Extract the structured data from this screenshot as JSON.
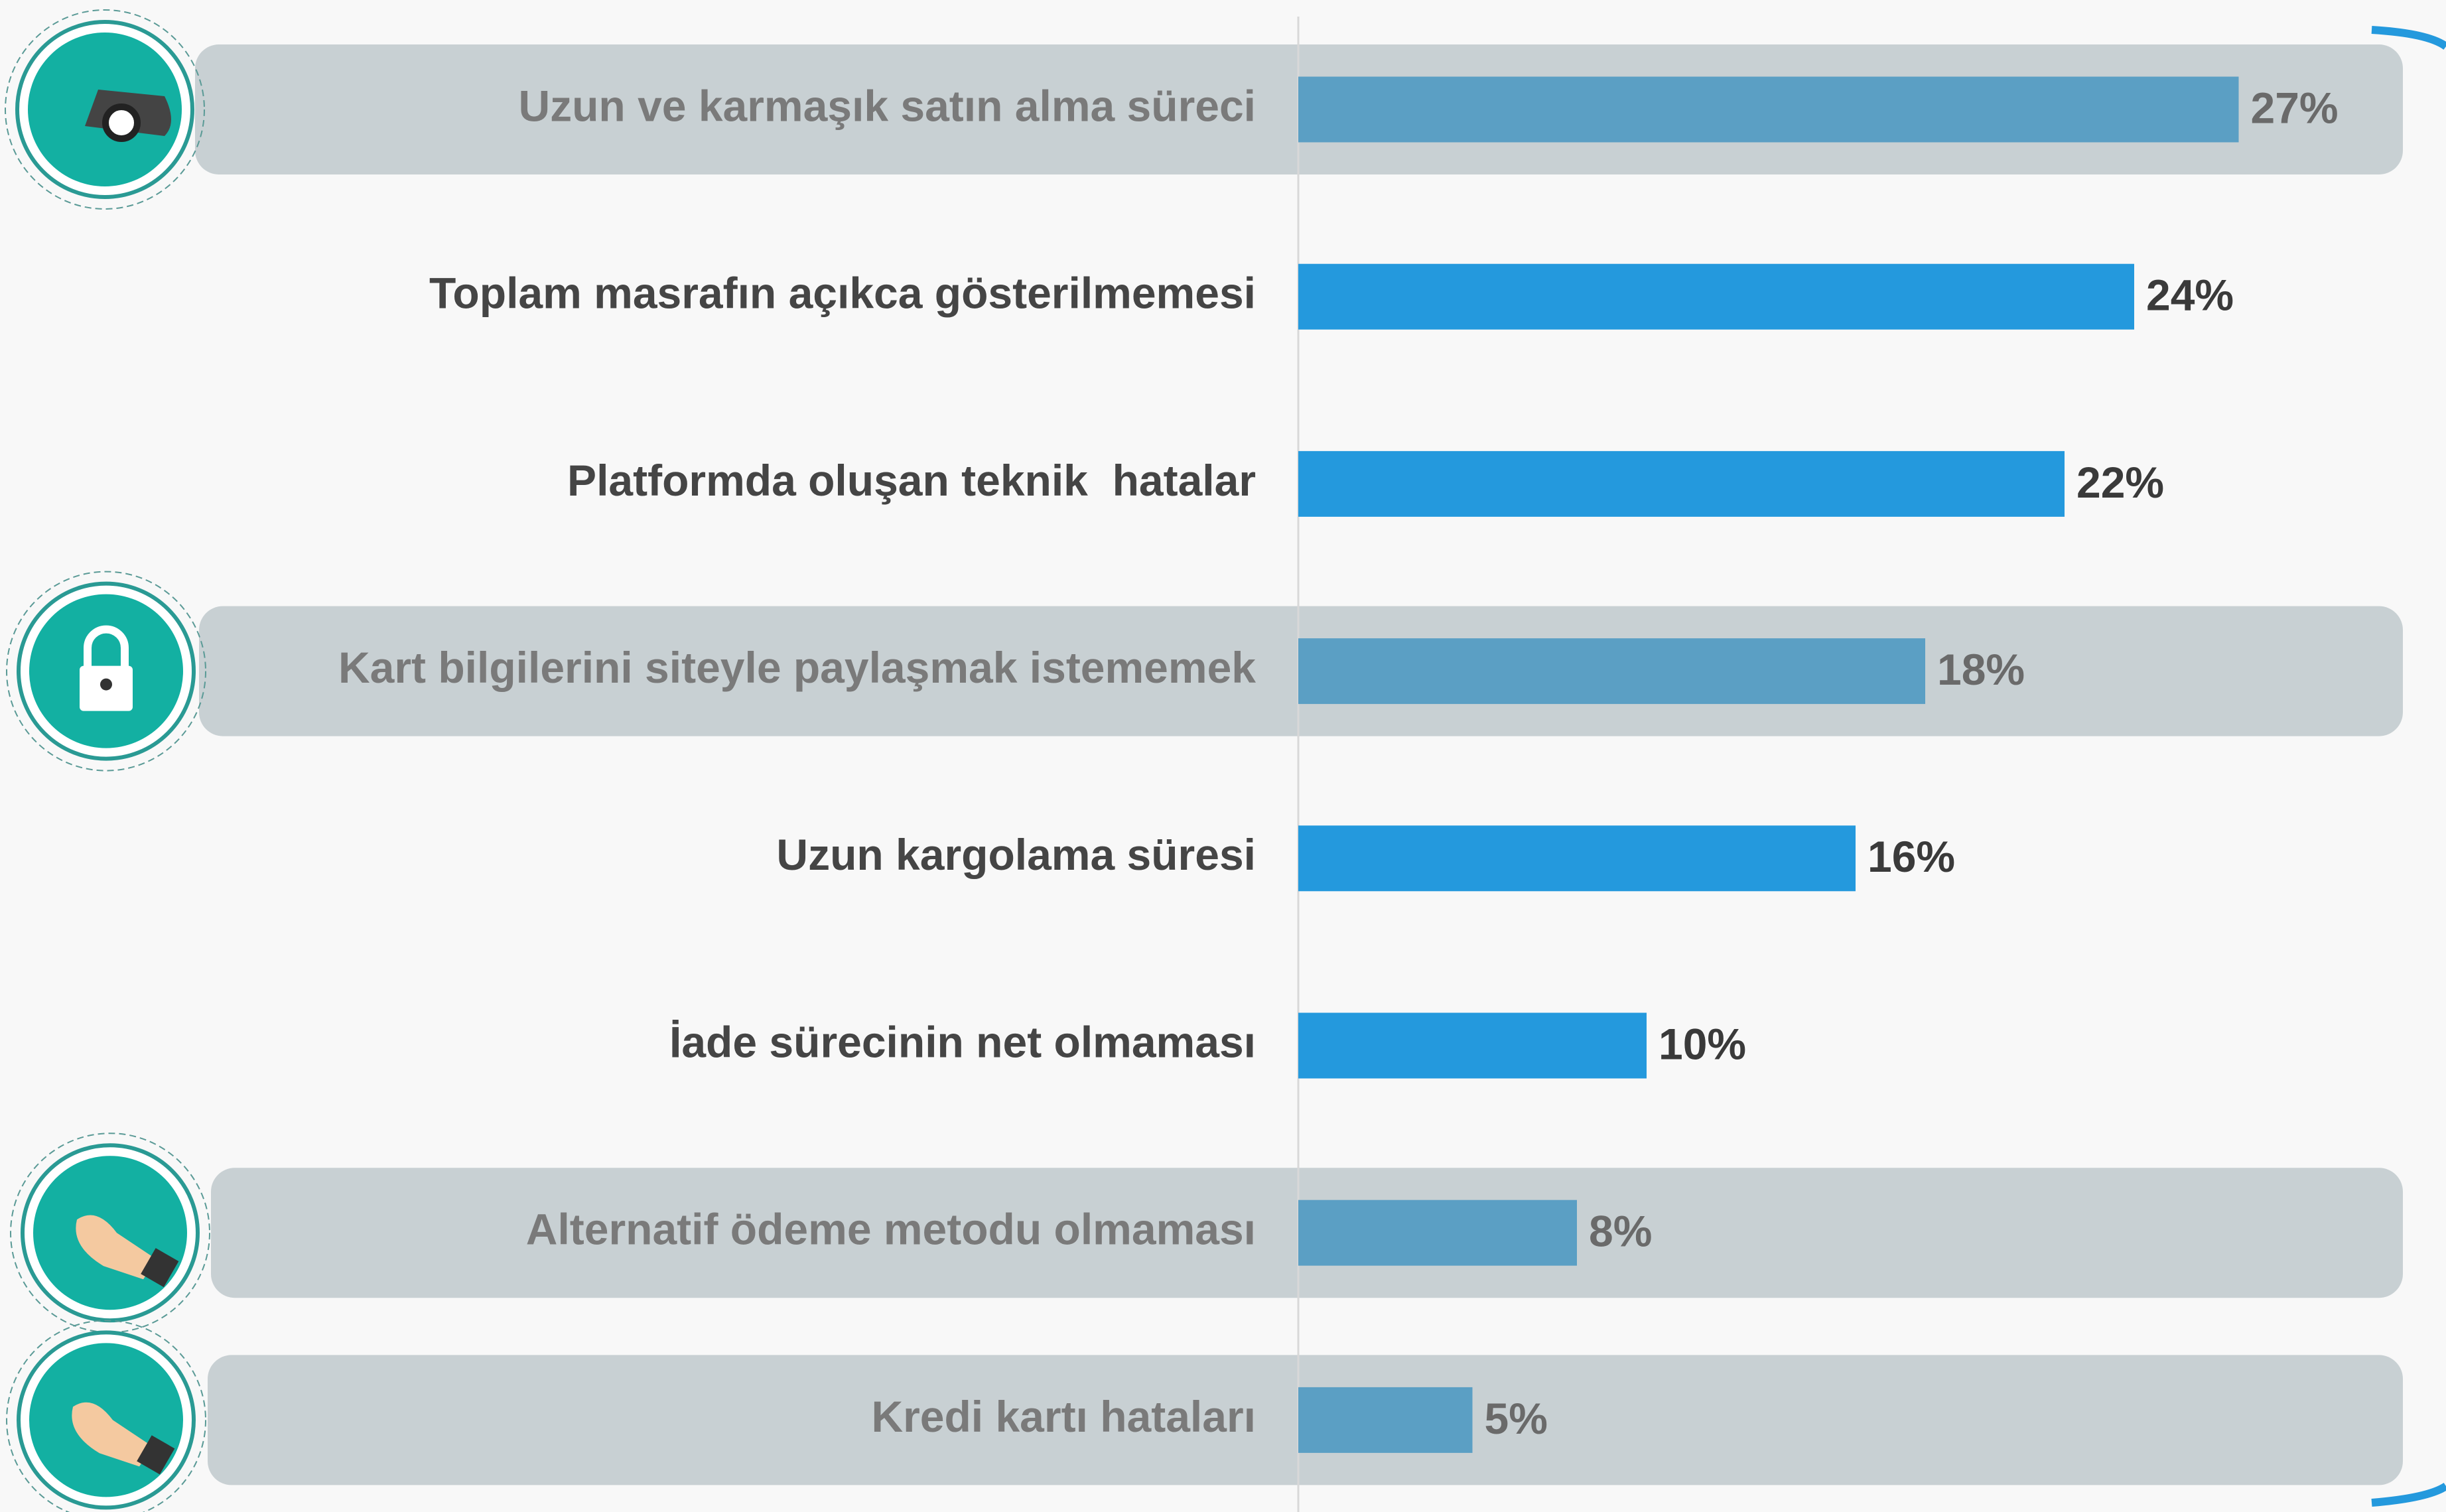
{
  "chart_data": {
    "type": "bar",
    "orientation": "horizontal",
    "categories": [
      "Uzun ve karmaşık satın alma süreci",
      "Toplam masrafın açıkca gösterilmemesi",
      "Platformda oluşan teknik  hatalar",
      "Kart bilgilerini siteyle paylaşmak istememek",
      "Uzun kargolama süresi",
      "İade sürecinin net olmaması",
      "Alternatif ödeme metodu olmaması",
      "Kredi kartı hataları"
    ],
    "values": [
      27,
      24,
      22,
      18,
      16,
      10,
      8,
      5
    ],
    "value_labels": [
      "27%",
      "24%",
      "22%",
      "18%",
      "16%",
      "10%",
      "8%",
      "5%"
    ],
    "colors": [
      "#5b9fc4",
      "#2499dd",
      "#2499dd",
      "#5b9fc4",
      "#2499dd",
      "#2499dd",
      "#5b9fc4",
      "#5b9fc4"
    ]
  }
}
